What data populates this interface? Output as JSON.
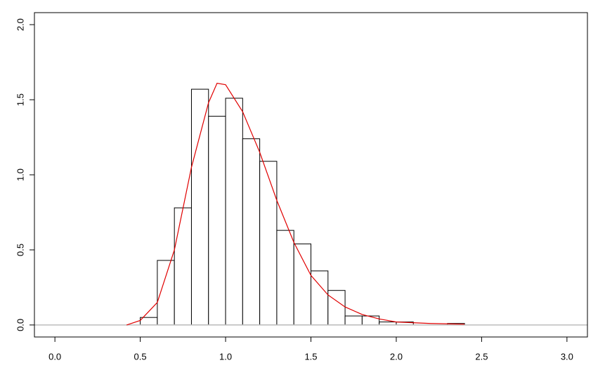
{
  "chart_data": {
    "type": "histogram",
    "bins": [
      0.5,
      0.6,
      0.7,
      0.8,
      0.9,
      1.0,
      1.1,
      1.2,
      1.3,
      1.4,
      1.5,
      1.6,
      1.7,
      1.8,
      1.9,
      2.0,
      2.1,
      2.2,
      2.3,
      2.4
    ],
    "values": [
      0.05,
      0.43,
      0.78,
      1.57,
      1.39,
      1.51,
      1.24,
      1.09,
      0.63,
      0.54,
      0.36,
      0.23,
      0.06,
      0.06,
      0.02,
      0.02,
      0,
      0,
      0.01
    ],
    "bar_fill": "#ffffff",
    "bar_stroke": "#000000",
    "density": {
      "color": "#e00000",
      "x": [
        0.42,
        0.5,
        0.6,
        0.7,
        0.8,
        0.9,
        0.95,
        1.0,
        1.1,
        1.2,
        1.3,
        1.4,
        1.5,
        1.6,
        1.7,
        1.8,
        1.9,
        2.0,
        2.2,
        2.4
      ],
      "values": [
        0,
        0.03,
        0.15,
        0.5,
        1.05,
        1.48,
        1.61,
        1.6,
        1.42,
        1.15,
        0.83,
        0.55,
        0.33,
        0.2,
        0.12,
        0.07,
        0.04,
        0.02,
        0.01,
        0.005
      ]
    },
    "reference_line": {
      "value": 0,
      "color": "#bebebe"
    },
    "xlim": [
      -0.12,
      3.12
    ],
    "ylim": [
      -0.08,
      2.08
    ],
    "xticks": [
      {
        "value": 0,
        "label": "0.0"
      },
      0.5,
      {
        "value": 1,
        "label": "1.0"
      },
      1.5,
      {
        "value": 2,
        "label": "2.0"
      },
      2.5,
      {
        "value": 3,
        "label": "3.0"
      }
    ],
    "yticks": [
      {
        "value": 0,
        "label": "0.0"
      },
      0.5,
      {
        "value": 1,
        "label": "1.0"
      },
      1.5,
      {
        "value": 2,
        "label": "2.0"
      }
    ]
  }
}
